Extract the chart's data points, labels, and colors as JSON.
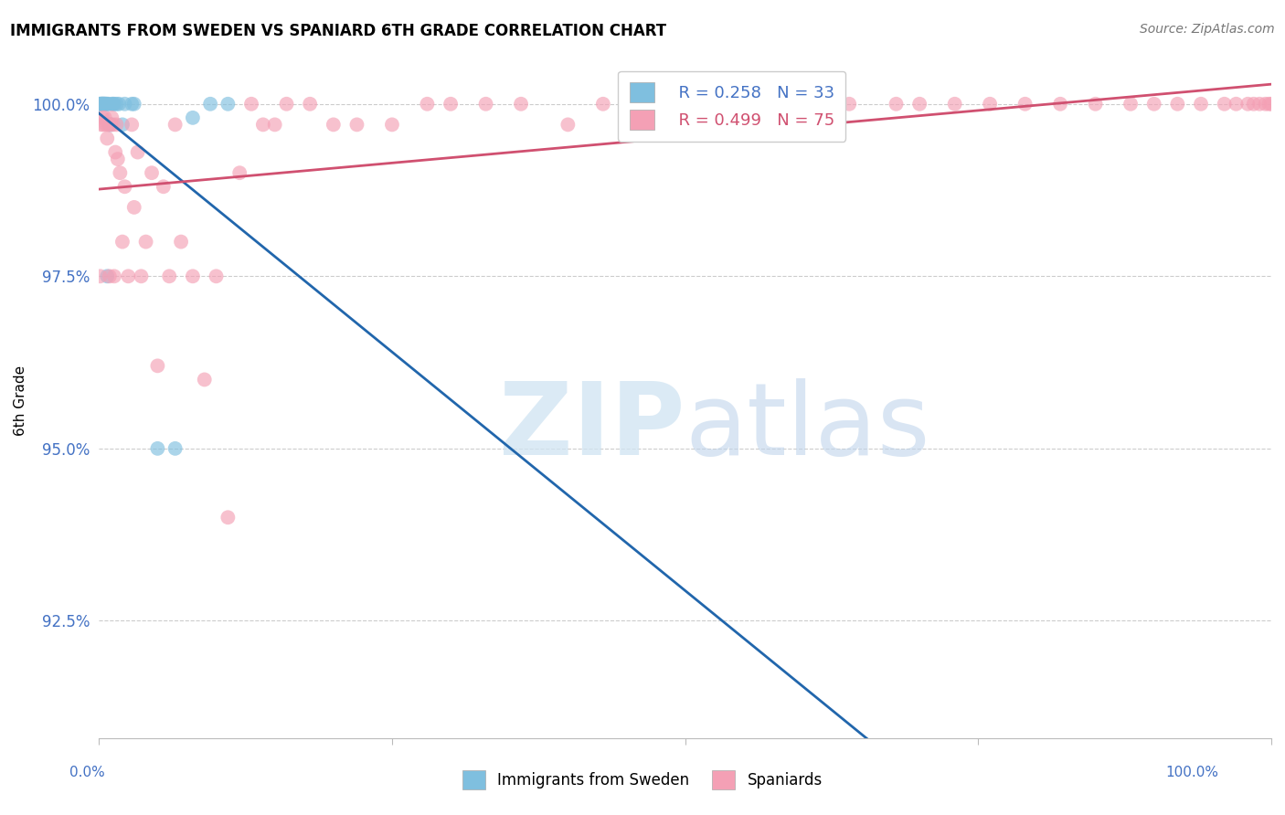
{
  "title": "IMMIGRANTS FROM SWEDEN VS SPANIARD 6TH GRADE CORRELATION CHART",
  "source": "Source: ZipAtlas.com",
  "ylabel": "6th Grade",
  "ytick_labels": [
    "92.5%",
    "95.0%",
    "97.5%",
    "100.0%"
  ],
  "ytick_values": [
    0.925,
    0.95,
    0.975,
    1.0
  ],
  "legend_r_blue": "R = 0.258",
  "legend_n_blue": "N = 33",
  "legend_r_pink": "R = 0.499",
  "legend_n_pink": "N = 75",
  "color_blue": "#7fbfdf",
  "color_pink": "#f4a0b5",
  "color_blue_line": "#2166ac",
  "color_pink_line": "#d05070",
  "color_axis_labels": "#4472c4",
  "seed": 42,
  "n_blue": 33,
  "n_pink": 75,
  "blue_r": 0.258,
  "pink_r": 0.499,
  "xlim": [
    0,
    1
  ],
  "ylim_low": 0.908,
  "ylim_high": 1.006
}
